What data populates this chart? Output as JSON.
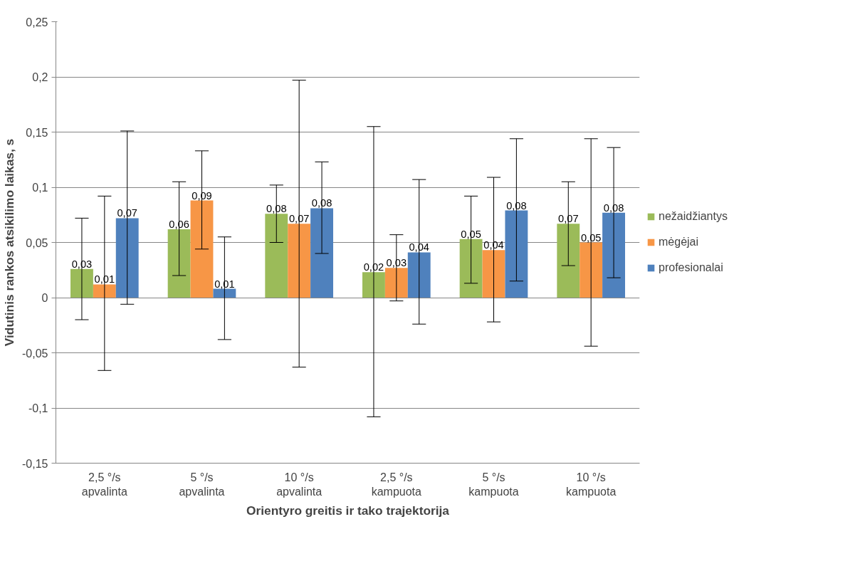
{
  "chart_data": {
    "type": "bar",
    "xlabel": "Orientyro greitis ir tako trajektorija",
    "ylabel": "Vidutinis rankos atsikilimo laikas, s",
    "categories": [
      "2,5 °/s\napvalinta",
      "5 °/s\napvalinta",
      "10 °/s\napvalinta",
      "2,5 °/s\nkampuota",
      "5 °/s\nkampuota",
      "10 °/s\nkampuota"
    ],
    "series": [
      {
        "name": "nežaidžiantys",
        "color": "#9bbb59",
        "values": [
          0.026,
          0.062,
          0.076,
          0.023,
          0.053,
          0.067
        ],
        "errors": [
          [
            -0.02,
            0.072
          ],
          [
            0.02,
            0.105
          ],
          [
            0.05,
            0.102
          ],
          [
            -0.108,
            0.155
          ],
          [
            0.013,
            0.092
          ],
          [
            0.029,
            0.105
          ]
        ],
        "value_labels": [
          "0,03",
          "0,06",
          "0,08",
          "0,02",
          "0,05",
          "0,07"
        ]
      },
      {
        "name": "mėgėjai",
        "color": "#f79646",
        "values": [
          0.012,
          0.088,
          0.067,
          0.027,
          0.043,
          0.05
        ],
        "errors": [
          [
            -0.066,
            0.092
          ],
          [
            0.044,
            0.133
          ],
          [
            -0.063,
            0.197
          ],
          [
            -0.003,
            0.057
          ],
          [
            -0.022,
            0.109
          ],
          [
            -0.044,
            0.144
          ]
        ],
        "value_labels": [
          "0,01",
          "0,09",
          "0,07",
          "0,03",
          "0,04",
          "0,05"
        ]
      },
      {
        "name": "profesionalai",
        "color": "#4f81bd",
        "values": [
          0.072,
          0.008,
          0.081,
          0.041,
          0.079,
          0.077
        ],
        "errors": [
          [
            -0.006,
            0.151
          ],
          [
            -0.038,
            0.055
          ],
          [
            0.04,
            0.123
          ],
          [
            -0.024,
            0.107
          ],
          [
            0.015,
            0.144
          ],
          [
            0.018,
            0.136
          ]
        ],
        "value_labels": [
          "0,07",
          "0,01",
          "0,08",
          "0,04",
          "0,08",
          "0,08"
        ]
      }
    ],
    "ylim": [
      -0.15,
      0.25
    ],
    "yticks": [
      {
        "value": -0.15,
        "label": "-0,15"
      },
      {
        "value": -0.1,
        "label": "-0,1"
      },
      {
        "value": -0.05,
        "label": "-0,05"
      },
      {
        "value": 0,
        "label": "0"
      },
      {
        "value": 0.05,
        "label": "0,05"
      },
      {
        "value": 0.1,
        "label": "0,1"
      },
      {
        "value": 0.15,
        "label": "0,15"
      },
      {
        "value": 0.2,
        "label": "0,2"
      },
      {
        "value": 0.25,
        "label": "0,25"
      }
    ],
    "grid": "y",
    "legend": "right"
  }
}
